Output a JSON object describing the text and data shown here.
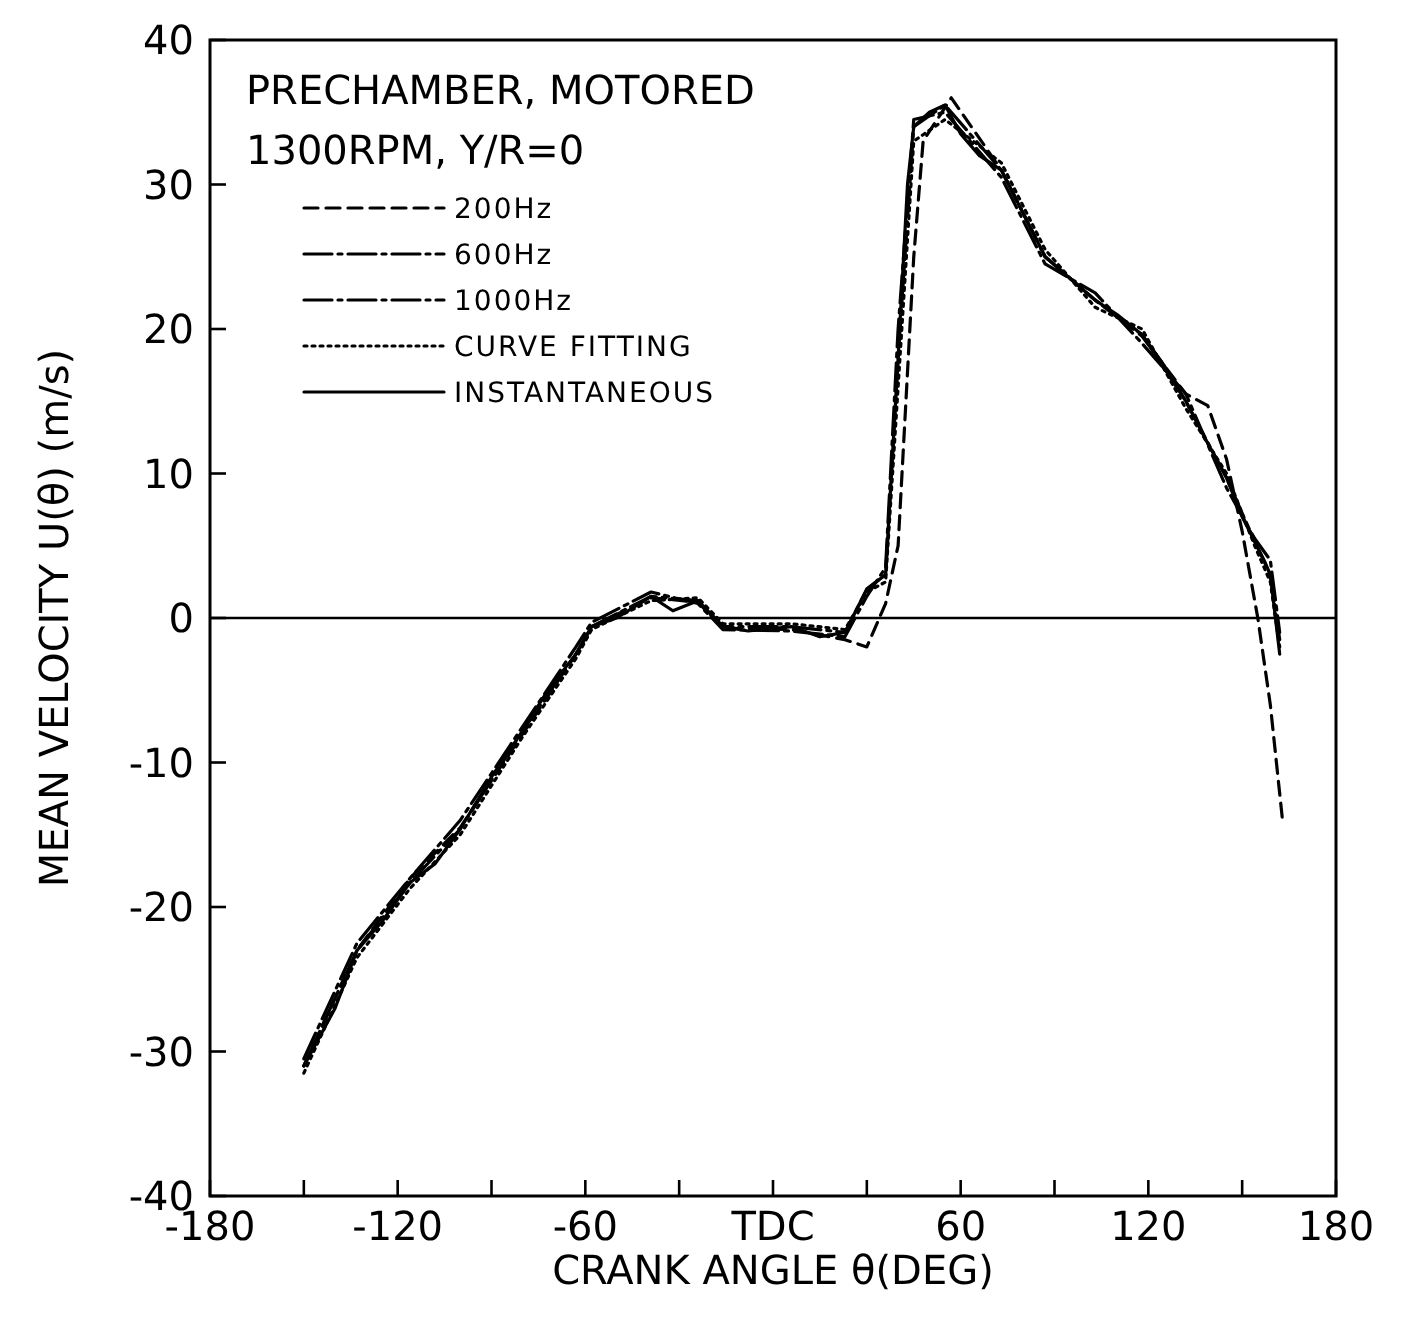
{
  "chart_data": {
    "type": "line",
    "title": "PRECHAMBER, MOTORED",
    "subtitle": "1300RPM, Y/R=0",
    "xlabel": "CRANK ANGLE θ(DEG)",
    "ylabel": "MEAN VELOCITY U(θ)  (m/s)",
    "xlim": [
      -180,
      180
    ],
    "xticks": [
      -180,
      {
        "value": -150,
        "label": null
      },
      -120,
      {
        "value": -90,
        "label": null
      },
      -60,
      {
        "value": -30,
        "label": null
      },
      {
        "value": 0,
        "label": "TDC"
      },
      {
        "value": 30,
        "label": null
      },
      60,
      {
        "value": 90,
        "label": null
      },
      120,
      {
        "value": 150,
        "label": null
      },
      180
    ],
    "ylim": [
      -40,
      40
    ],
    "yticks": [
      -40,
      -30,
      -20,
      -10,
      0,
      10,
      20,
      30,
      40
    ],
    "grid": false,
    "legend": "top left",
    "ref_lines": [
      {
        "axis": "y",
        "value": 0,
        "color": "#000000",
        "line_style": "solid"
      }
    ],
    "series": [
      {
        "name": "200Hz",
        "color": "#000000",
        "line_style": "dashed",
        "x": [
          -150,
          -133,
          -116,
          -100,
          -80,
          -63,
          -58,
          -39,
          -24,
          -16,
          6,
          23,
          30,
          36,
          40,
          45,
          48,
          57,
          73,
          87,
          103,
          118,
          132,
          139,
          145,
          150,
          155,
          159,
          163
        ],
        "values": [
          -31,
          -23,
          -18,
          -14.5,
          -8,
          -2.5,
          -0.6,
          1.4,
          1.1,
          -0.7,
          -0.8,
          -1.5,
          -2,
          1,
          5,
          25,
          33,
          36,
          31,
          25,
          22,
          19.5,
          15.5,
          14.7,
          11,
          6,
          0,
          -6,
          -14.2
        ]
      },
      {
        "name": "600Hz",
        "color": "#000000",
        "line_style": "dashdot",
        "x": [
          -150,
          -133,
          -116,
          -100,
          -80,
          -63,
          -58,
          -39,
          -24,
          -16,
          6,
          23,
          30,
          36,
          40,
          45,
          55,
          73,
          87,
          103,
          118,
          132,
          145,
          154,
          159,
          162
        ],
        "values": [
          -31,
          -23,
          -18.3,
          -14.6,
          -7.8,
          -2.5,
          -0.6,
          1.5,
          1.2,
          -0.6,
          -0.6,
          -1,
          2,
          3,
          18,
          34,
          35.5,
          31,
          25,
          22,
          19.6,
          15,
          9.7,
          5.3,
          3,
          -1.5
        ]
      },
      {
        "name": "1000Hz",
        "color": "#000000",
        "line_style": "dashdot",
        "x": [
          -150,
          -133,
          -116,
          -100,
          -80,
          -63,
          -58,
          -39,
          -24,
          -16,
          6,
          23,
          30,
          36,
          40,
          45,
          55,
          73,
          87,
          103,
          118,
          132,
          145,
          154,
          159,
          162
        ],
        "values": [
          -30.5,
          -22.5,
          -18,
          -14,
          -7.5,
          -2,
          -0.3,
          1.8,
          1,
          -0.8,
          -0.9,
          -1.3,
          1.5,
          3.5,
          20,
          34.5,
          35,
          30.5,
          24.5,
          22.5,
          19,
          15.5,
          9,
          5.5,
          4,
          -1
        ]
      },
      {
        "name": "CURVE FITTING",
        "color": "#000000",
        "line_style": "dotted",
        "x": [
          -150,
          -133,
          -116,
          -100,
          -80,
          -63,
          -58,
          -39,
          -24,
          -16,
          6,
          23,
          30,
          36,
          40,
          45,
          55,
          73,
          87,
          103,
          118,
          132,
          145,
          154,
          159,
          162
        ],
        "values": [
          -31.5,
          -23.5,
          -18.7,
          -15,
          -8.2,
          -2.8,
          -0.8,
          1.2,
          1.4,
          -0.4,
          -0.4,
          -0.8,
          1.8,
          2.5,
          16,
          33,
          34.5,
          31.5,
          25.5,
          21.5,
          20,
          14.5,
          10,
          5,
          2.5,
          -2
        ]
      },
      {
        "name": "INSTANTANEOUS",
        "color": "#000000",
        "line_style": "solid",
        "x": [
          -150,
          -140,
          -133,
          -125,
          -116,
          -108,
          -100,
          -90,
          -80,
          -72,
          -63,
          -58,
          -50,
          -39,
          -32,
          -24,
          -16,
          -8,
          6,
          15,
          23,
          30,
          33,
          36,
          40,
          43,
          45,
          50,
          55,
          60,
          66,
          73,
          80,
          87,
          95,
          103,
          110,
          118,
          125,
          132,
          138,
          145,
          150,
          154,
          157,
          159,
          162
        ],
        "values": [
          -31,
          -27,
          -23,
          -21,
          -18.3,
          -17,
          -14.6,
          -11,
          -7.8,
          -5,
          -2.5,
          -0.6,
          0,
          1.5,
          0.5,
          1.2,
          -0.6,
          -0.9,
          -0.6,
          -1.3,
          -1,
          2,
          2.5,
          3,
          18,
          30,
          34,
          35,
          35.5,
          33.5,
          32,
          31,
          28,
          25,
          23.5,
          22,
          21,
          19.6,
          17.5,
          15,
          12.5,
          9.7,
          7,
          5.3,
          4,
          3,
          -2.5
        ]
      }
    ]
  }
}
